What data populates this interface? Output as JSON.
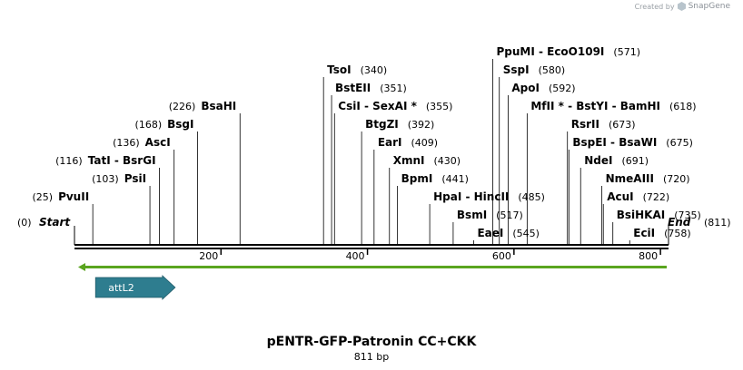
{
  "credit": {
    "prefix": "Created by",
    "brand": "SnapGene"
  },
  "map": {
    "length": 811,
    "start_label": "Start",
    "start_pos": "(0)",
    "end_label": "End",
    "end_pos": "(811)",
    "ticks": [
      "200",
      "400",
      "600",
      "800"
    ],
    "accent": "#2e7d8f",
    "arrow_color": "#5aa51f"
  },
  "sites": [
    {
      "name": "PvuII",
      "pos": "(25)",
      "bp": 25,
      "row": 0
    },
    {
      "name": "PsiI",
      "pos": "(103)",
      "bp": 103,
      "row": 1
    },
    {
      "name": "TatI  - BsrGI",
      "pos": "(116)",
      "bp": 116,
      "row": 2
    },
    {
      "name": "AscI",
      "pos": "(136)",
      "bp": 136,
      "row": 3
    },
    {
      "name": "BsgI",
      "pos": "(168)",
      "bp": 168,
      "row": 4
    },
    {
      "name": "BsaHI",
      "pos": "(226)",
      "bp": 226,
      "row": 5
    },
    {
      "name": "TsoI",
      "pos": "(340)",
      "bp": 340,
      "row": 7
    },
    {
      "name": "BstEII",
      "pos": "(351)",
      "bp": 351,
      "row": 6
    },
    {
      "name": "CsiI  - SexAI *",
      "pos": "(355)",
      "bp": 355,
      "row": 5
    },
    {
      "name": "BtgZI",
      "pos": "(392)",
      "bp": 392,
      "row": 4
    },
    {
      "name": "EarI",
      "pos": "(409)",
      "bp": 409,
      "row": 3
    },
    {
      "name": "XmnI",
      "pos": "(430)",
      "bp": 430,
      "row": 2
    },
    {
      "name": "BpmI",
      "pos": "(441)",
      "bp": 441,
      "row": 1
    },
    {
      "name": "HpaI  - HincII",
      "pos": "(485)",
      "bp": 485,
      "row": 0
    },
    {
      "name": "BsmI",
      "pos": "(517)",
      "bp": 517,
      "row": -1
    },
    {
      "name": "EaeI",
      "pos": "(545)",
      "bp": 545,
      "row": -2
    },
    {
      "name": "PpuMI  - EcoO109I",
      "pos": "(571)",
      "bp": 571,
      "row": 8
    },
    {
      "name": "SspI",
      "pos": "(580)",
      "bp": 580,
      "row": 7
    },
    {
      "name": "ApoI",
      "pos": "(592)",
      "bp": 592,
      "row": 6
    },
    {
      "name": "MfII *  - BstYI  - BamHI",
      "pos": "(618)",
      "bp": 618,
      "row": 5
    },
    {
      "name": "RsrII",
      "pos": "(673)",
      "bp": 673,
      "row": 4
    },
    {
      "name": "BspEI  - BsaWI",
      "pos": "(675)",
      "bp": 675,
      "row": 3
    },
    {
      "name": "NdeI",
      "pos": "(691)",
      "bp": 691,
      "row": 2
    },
    {
      "name": "NmeAIII",
      "pos": "(720)",
      "bp": 720,
      "row": 1
    },
    {
      "name": "AcuI",
      "pos": "(722)",
      "bp": 722,
      "row": 0
    },
    {
      "name": "BsiHKAI",
      "pos": "(735)",
      "bp": 735,
      "row": -1
    },
    {
      "name": "EciI",
      "pos": "(758)",
      "bp": 758,
      "row": -2
    }
  ],
  "features": [
    {
      "name": "attL2",
      "start": 35,
      "end": 135,
      "direction": "forward"
    }
  ],
  "title": "pENTR-GFP-Patronin CC+CKK",
  "subtitle": "811 bp"
}
